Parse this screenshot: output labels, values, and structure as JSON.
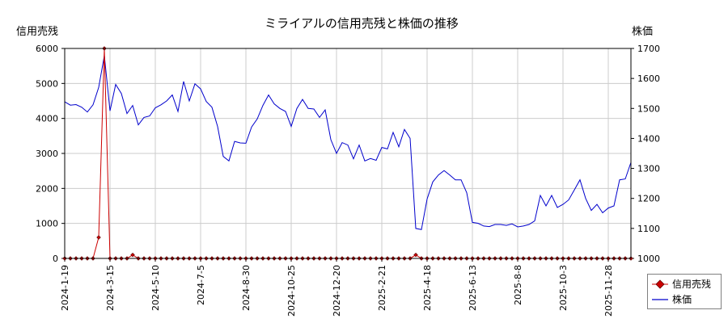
{
  "chart_data": {
    "type": "line",
    "title": "ミライアルの信用売残と株価の推移",
    "left_axis_title": "信用売残",
    "right_axis_title": "株価",
    "left_ylim": [
      0,
      6000
    ],
    "right_ylim": [
      1000,
      1700
    ],
    "left_ticks": [
      "0",
      "1000",
      "2000",
      "3000",
      "4000",
      "5000",
      "6000"
    ],
    "right_ticks": [
      "1000",
      "1100",
      "1200",
      "1300",
      "1400",
      "1500",
      "1600",
      "1700"
    ],
    "x_tick_labels": [
      "2024-1-19",
      "2024-3-15",
      "2024-5-10",
      "2024-7-5",
      "2024-8-30",
      "2024-10-25",
      "2024-12-20",
      "2025-2-21",
      "2025-4-18",
      "2025-6-13",
      "2025-8-8",
      "2025-10-3",
      "2025-11-28"
    ],
    "x_points": 101,
    "grid": true,
    "legend_position": "bottom-right",
    "series": [
      {
        "name": "信用売残",
        "axis": "left",
        "color": "#cc0000",
        "marker": "diamond",
        "values": [
          0,
          0,
          0,
          0,
          0,
          0,
          600,
          6000,
          0,
          0,
          0,
          0,
          100,
          0,
          0,
          0,
          0,
          0,
          0,
          0,
          0,
          0,
          0,
          0,
          0,
          0,
          0,
          0,
          0,
          0,
          0,
          0,
          0,
          0,
          0,
          0,
          0,
          0,
          0,
          0,
          0,
          0,
          0,
          0,
          0,
          0,
          0,
          0,
          0,
          0,
          0,
          0,
          0,
          0,
          0,
          0,
          0,
          0,
          0,
          0,
          0,
          0,
          100,
          0,
          0,
          0,
          0,
          0,
          0,
          0,
          0,
          0,
          0,
          0,
          0,
          0,
          0,
          0,
          0,
          0,
          0,
          0,
          0,
          0,
          0,
          0,
          0,
          0,
          0,
          0,
          0,
          0,
          0,
          0,
          0,
          0,
          0,
          0,
          0,
          0,
          0
        ]
      },
      {
        "name": "株価",
        "axis": "right",
        "color": "#0000cc",
        "marker": "none",
        "values": [
          1522,
          1511,
          1513,
          1504,
          1488,
          1512,
          1570,
          1676,
          1492,
          1580,
          1550,
          1483,
          1510,
          1445,
          1470,
          1475,
          1502,
          1512,
          1525,
          1545,
          1490,
          1590,
          1525,
          1582,
          1565,
          1523,
          1504,
          1440,
          1340,
          1325,
          1390,
          1385,
          1384,
          1438,
          1465,
          1510,
          1545,
          1515,
          1500,
          1490,
          1440,
          1500,
          1530,
          1500,
          1498,
          1470,
          1495,
          1396,
          1350,
          1386,
          1378,
          1332,
          1378,
          1325,
          1333,
          1327,
          1370,
          1365,
          1420,
          1372,
          1430,
          1400,
          1100,
          1096,
          1198,
          1255,
          1278,
          1293,
          1278,
          1262,
          1262,
          1219,
          1120,
          1117,
          1108,
          1106,
          1113,
          1113,
          1110,
          1115,
          1105,
          1108,
          1113,
          1125,
          1210,
          1175,
          1210,
          1170,
          1180,
          1195,
          1228,
          1262,
          1200,
          1160,
          1180,
          1152,
          1168,
          1175,
          1262,
          1265,
          1320
        ]
      }
    ]
  }
}
